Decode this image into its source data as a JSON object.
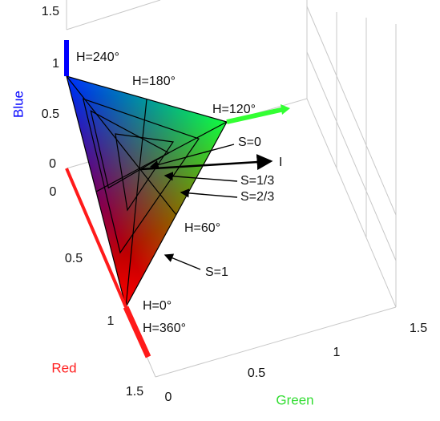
{
  "axes": {
    "blue": {
      "label": "Blue",
      "ticks": [
        "0",
        "0.5",
        "1",
        "1.5"
      ]
    },
    "red": {
      "label": "Red",
      "ticks": [
        "0",
        "0.5",
        "1",
        "1.5"
      ]
    },
    "green": {
      "label": "Green",
      "ticks": [
        "0",
        "0.5",
        "1",
        "1.5"
      ]
    }
  },
  "annotations": {
    "h240": "H=240°",
    "h180": "H=180°",
    "h120": "H=120°",
    "h60": "H=60°",
    "h0": "H=0°",
    "h360": "H=360°",
    "s0": "S=0",
    "s13": "S=1/3",
    "s23": "S=2/3",
    "s1": "S=1",
    "i": "I"
  }
}
